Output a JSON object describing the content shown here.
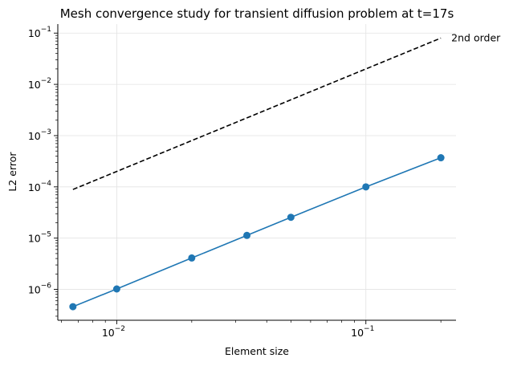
{
  "chart_data": {
    "type": "line",
    "title": "Mesh convergence study for transient diffusion problem at t=17s",
    "xlabel": "Element size",
    "ylabel": "L2 error",
    "x_scale": "log",
    "y_scale": "log",
    "xlim": [
      0.0058,
      0.23
    ],
    "ylim": [
      2.5e-07,
      0.15
    ],
    "grid": true,
    "x_ticks": [
      {
        "value": 0.01,
        "base": "10",
        "exp": "−2"
      },
      {
        "value": 0.1,
        "base": "10",
        "exp": "−1"
      }
    ],
    "y_ticks": [
      {
        "value": 1e-06,
        "base": "10",
        "exp": "−6"
      },
      {
        "value": 1e-05,
        "base": "10",
        "exp": "−5"
      },
      {
        "value": 0.0001,
        "base": "10",
        "exp": "−4"
      },
      {
        "value": 0.001,
        "base": "10",
        "exp": "−3"
      },
      {
        "value": 0.01,
        "base": "10",
        "exp": "−2"
      },
      {
        "value": 0.1,
        "base": "10",
        "exp": "−1"
      }
    ],
    "series": [
      {
        "style": "solid-marker",
        "color": "#1f77b4",
        "x": [
          0.00667,
          0.01,
          0.02,
          0.0333,
          0.05,
          0.1,
          0.2
        ],
        "y": [
          4.6e-07,
          1.02e-06,
          4.1e-06,
          1.13e-05,
          2.55e-05,
          0.0001,
          0.00037
        ]
      },
      {
        "name": "2nd order",
        "style": "dashed",
        "color": "#000000",
        "x": [
          0.00667,
          0.2
        ],
        "y": [
          8.9e-05,
          0.08
        ]
      }
    ],
    "annotations": [
      {
        "text": "2nd order",
        "x": 0.2,
        "y": 0.08
      }
    ]
  }
}
